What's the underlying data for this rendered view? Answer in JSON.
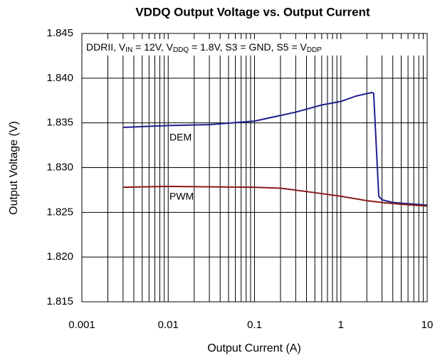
{
  "chart_data": {
    "type": "line",
    "title": "VDDQ Output Voltage vs. Output Current",
    "xlabel": "Output Current (A)",
    "ylabel": "Output Voltage (V)",
    "annotation": [
      {
        "text": "DDRII, V"
      },
      {
        "text": "IN",
        "sub": true
      },
      {
        "text": " = 12V, V"
      },
      {
        "text": "DDQ",
        "sub": true
      },
      {
        "text": " = 1.8V, S3 = GND, S5 = V"
      },
      {
        "text": "DDP",
        "sub": true
      }
    ],
    "xscale": "log",
    "xlim": [
      0.001,
      10
    ],
    "xticks": [
      0.001,
      0.01,
      0.1,
      1,
      10
    ],
    "ylim": [
      1.815,
      1.845
    ],
    "yticks": [
      1.815,
      {
        "value": 1.82,
        "label": "1.820"
      },
      1.825,
      {
        "value": 1.83,
        "label": "1.830"
      },
      1.835,
      {
        "value": 1.84,
        "label": "1.840"
      },
      1.845
    ],
    "grid": true,
    "minor_grid": true,
    "series": [
      {
        "name": "DEM",
        "color": "#1f1f8f",
        "x": [
          0.003,
          0.01,
          0.03,
          0.1,
          0.3,
          0.6,
          1,
          1.5,
          2.3,
          2.4,
          2.75,
          3,
          4,
          10
        ],
        "values": [
          1.8345,
          1.8347,
          1.8348,
          1.8352,
          1.8362,
          1.837,
          1.8374,
          1.838,
          1.8384,
          1.8383,
          1.8268,
          1.8264,
          1.8261,
          1.8258
        ]
      },
      {
        "name": "PWM",
        "color": "#8b1a1a",
        "x": [
          0.003,
          0.01,
          0.1,
          0.2,
          0.5,
          1,
          2,
          3,
          5,
          10
        ],
        "values": [
          1.8278,
          1.8279,
          1.8278,
          1.8277,
          1.8272,
          1.8268,
          1.8263,
          1.8261,
          1.8259,
          1.8257
        ]
      }
    ]
  }
}
